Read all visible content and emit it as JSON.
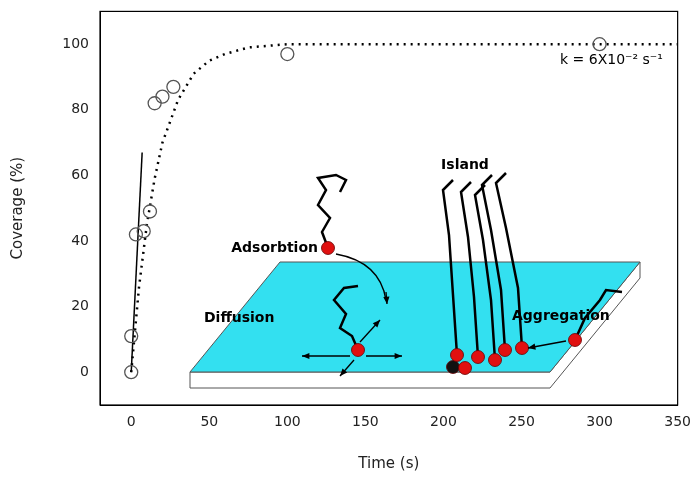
{
  "chart_data": {
    "type": "scatter",
    "x_label": "Time (s)",
    "y_label": "Coverage (%)",
    "annotations": [
      "k = 6X10⁻² s⁻¹",
      "Adsorbtion",
      "Diffusion",
      "Island",
      "Aggregation"
    ],
    "xlim": [
      -20,
      350
    ],
    "xticks": [
      0,
      50,
      100,
      150,
      200,
      250,
      300,
      350
    ],
    "ylim": [
      -10,
      110
    ],
    "yticks": [
      0,
      20,
      40,
      60,
      80,
      100
    ],
    "grid": false,
    "series": [
      {
        "type": "scatter",
        "marker": "open_circle",
        "color": "#555555",
        "x": [
          0,
          0,
          3,
          8,
          12,
          15,
          20,
          27,
          100,
          300
        ],
        "values": [
          0,
          11,
          42,
          43,
          49,
          82,
          84,
          87,
          97,
          100
        ]
      },
      {
        "type": "line",
        "line_style": "dotted",
        "color": "#000000",
        "x": [
          0,
          5,
          10,
          15,
          20,
          30,
          40,
          50,
          60,
          75,
          100,
          150,
          200,
          250,
          300,
          350
        ],
        "values": [
          0,
          26,
          45,
          59,
          70,
          83,
          91,
          95,
          97,
          99,
          100,
          100,
          100,
          100,
          100,
          100
        ]
      },
      {
        "type": "line",
        "line_style": "solid",
        "color": "#000000",
        "x": [
          0,
          7
        ],
        "values": [
          0,
          67
        ]
      }
    ]
  }
}
